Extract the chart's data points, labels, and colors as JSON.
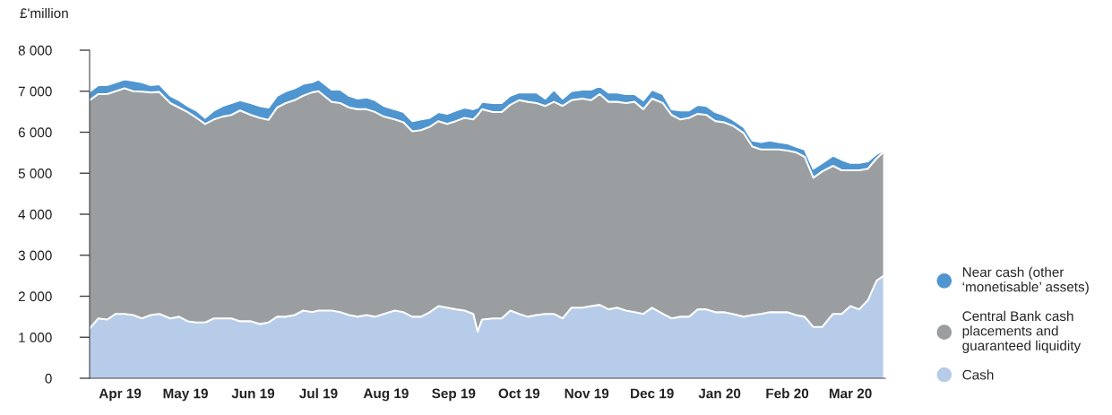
{
  "chart_data": {
    "type": "area",
    "stacked": true,
    "ylabel": "£'million",
    "x": [
      "2019-04-01",
      "2019-04-05",
      "2019-04-09",
      "2019-04-13",
      "2019-04-17",
      "2019-04-21",
      "2019-04-25",
      "2019-04-29",
      "2019-05-03",
      "2019-05-08",
      "2019-05-12",
      "2019-05-16",
      "2019-05-20",
      "2019-05-24",
      "2019-05-28",
      "2019-06-01",
      "2019-06-05",
      "2019-06-09",
      "2019-06-14",
      "2019-06-18",
      "2019-06-22",
      "2019-06-26",
      "2019-06-30",
      "2019-07-04",
      "2019-07-08",
      "2019-07-12",
      "2019-07-15",
      "2019-07-21",
      "2019-07-25",
      "2019-07-29",
      "2019-08-02",
      "2019-08-06",
      "2019-08-10",
      "2019-08-14",
      "2019-08-19",
      "2019-08-23",
      "2019-08-27",
      "2019-08-31",
      "2019-09-04",
      "2019-09-08",
      "2019-09-12",
      "2019-09-16",
      "2019-09-20",
      "2019-09-24",
      "2019-09-26",
      "2019-09-28",
      "2019-10-03",
      "2019-10-07",
      "2019-10-11",
      "2019-10-15",
      "2019-10-19",
      "2019-10-23",
      "2019-10-27",
      "2019-10-31",
      "2019-11-04",
      "2019-11-08",
      "2019-11-13",
      "2019-11-17",
      "2019-11-21",
      "2019-11-25",
      "2019-11-29",
      "2019-12-03",
      "2019-12-07",
      "2019-12-11",
      "2019-12-15",
      "2019-12-20",
      "2019-12-24",
      "2019-12-28",
      "2020-01-01",
      "2020-01-05",
      "2020-01-09",
      "2020-01-13",
      "2020-01-17",
      "2020-01-21",
      "2020-01-26",
      "2020-01-30",
      "2020-02-03",
      "2020-02-07",
      "2020-02-11",
      "2020-02-15",
      "2020-02-19",
      "2020-02-23",
      "2020-02-27",
      "2020-03-02",
      "2020-03-07",
      "2020-03-11",
      "2020-03-15",
      "2020-03-19",
      "2020-03-23",
      "2020-03-27",
      "2020-03-30"
    ],
    "series": [
      {
        "name": "Cash",
        "color": "#b7cce9",
        "values": [
          1210,
          1460,
          1430,
          1570,
          1570,
          1540,
          1460,
          1540,
          1570,
          1460,
          1500,
          1390,
          1360,
          1360,
          1460,
          1460,
          1460,
          1390,
          1390,
          1320,
          1360,
          1500,
          1500,
          1540,
          1650,
          1610,
          1650,
          1650,
          1610,
          1540,
          1500,
          1540,
          1500,
          1570,
          1650,
          1610,
          1500,
          1500,
          1610,
          1760,
          1720,
          1680,
          1650,
          1570,
          1140,
          1430,
          1460,
          1460,
          1650,
          1570,
          1500,
          1540,
          1570,
          1570,
          1460,
          1720,
          1720,
          1760,
          1790,
          1680,
          1720,
          1650,
          1610,
          1570,
          1720,
          1570,
          1460,
          1500,
          1500,
          1680,
          1680,
          1610,
          1610,
          1570,
          1500,
          1540,
          1570,
          1610,
          1610,
          1610,
          1540,
          1500,
          1250,
          1250,
          1570,
          1570,
          1760,
          1680,
          1900,
          2380,
          2490
        ]
      },
      {
        "name": "Central Bank cash\nplacements and\nguaranteed liquidity",
        "color": "#9a9ea0",
        "values": [
          5570,
          5470,
          5500,
          5430,
          5500,
          5460,
          5530,
          5430,
          5410,
          5250,
          5100,
          5100,
          4990,
          4840,
          4850,
          4920,
          4960,
          5140,
          5030,
          5030,
          4940,
          5100,
          5210,
          5240,
          5240,
          5360,
          5350,
          5090,
          5100,
          5060,
          5060,
          5020,
          4990,
          4810,
          4660,
          4630,
          4520,
          4550,
          4520,
          4510,
          4480,
          4590,
          4700,
          4740,
          5280,
          5130,
          5030,
          5030,
          5020,
          5210,
          5240,
          5170,
          5070,
          5170,
          5180,
          5060,
          5100,
          5020,
          5140,
          5060,
          5020,
          5060,
          5130,
          4990,
          5100,
          5140,
          4960,
          4810,
          4850,
          4770,
          4740,
          4660,
          4630,
          4590,
          4480,
          4110,
          4010,
          3970,
          3970,
          3940,
          3970,
          3900,
          3640,
          3790,
          3610,
          3500,
          3310,
          3390,
          3210,
          2980,
          3020
        ]
      },
      {
        "name": "Near cash (other\n‘monetisable’ assets)",
        "color": "#4f95d0",
        "values": [
          210,
          220,
          220,
          220,
          220,
          260,
          230,
          180,
          190,
          180,
          180,
          150,
          180,
          150,
          220,
          260,
          290,
          250,
          290,
          290,
          300,
          290,
          290,
          290,
          290,
          250,
          290,
          300,
          330,
          290,
          260,
          290,
          290,
          260,
          250,
          250,
          250,
          260,
          220,
          220,
          250,
          260,
          250,
          250,
          180,
          180,
          220,
          220,
          220,
          190,
          230,
          260,
          180,
          300,
          180,
          220,
          220,
          260,
          200,
          230,
          230,
          220,
          190,
          220,
          220,
          220,
          140,
          220,
          180,
          220,
          220,
          220,
          180,
          150,
          150,
          150,
          180,
          220,
          180,
          180,
          140,
          180,
          220,
          210,
          250,
          260,
          180,
          180,
          180,
          110,
          40
        ]
      }
    ],
    "xlim": [
      "2019-04-01",
      "2020-03-31"
    ],
    "xticks": [
      {
        "value": "2019-04-15",
        "label": "Apr 19"
      },
      {
        "value": "2019-05-15",
        "label": "May 19"
      },
      {
        "value": "2019-06-15",
        "label": "Jun 19"
      },
      {
        "value": "2019-07-15",
        "label": "Jul 19"
      },
      {
        "value": "2019-08-15",
        "label": "Aug 19"
      },
      {
        "value": "2019-09-15",
        "label": "Sep 19"
      },
      {
        "value": "2019-10-15",
        "label": "Oct 19"
      },
      {
        "value": "2019-11-15",
        "label": "Nov 19"
      },
      {
        "value": "2019-12-15",
        "label": "Dec 19"
      },
      {
        "value": "2020-01-15",
        "label": "Jan 20"
      },
      {
        "value": "2020-02-15",
        "label": "Feb 20"
      },
      {
        "value": "2020-03-15",
        "label": "Mar 20"
      }
    ],
    "ylim": [
      0,
      8000
    ],
    "yticks": [
      0,
      {
        "value": 1000,
        "label": "1 000"
      },
      {
        "value": 2000,
        "label": "2 000"
      },
      {
        "value": 3000,
        "label": "3 000"
      },
      {
        "value": 4000,
        "label": "4 000"
      },
      {
        "value": 5000,
        "label": "5 000"
      },
      {
        "value": 6000,
        "label": "6 000"
      },
      {
        "value": 7000,
        "label": "7 000"
      },
      {
        "value": 8000,
        "label": "8 000"
      }
    ],
    "grid": false,
    "legend": "bottom right"
  }
}
